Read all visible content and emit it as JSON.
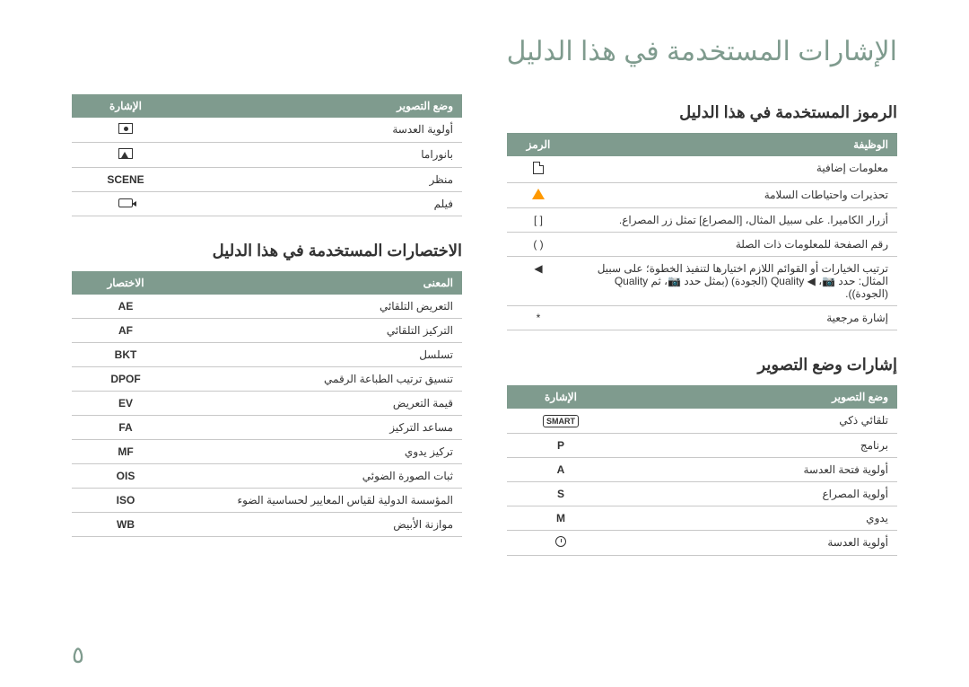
{
  "doc_title": "الإشارات المستخدمة في هذا الدليل",
  "page_number": "٥",
  "right": {
    "symbols_title": "الرموز المستخدمة في هذا الدليل",
    "symbols_headers": {
      "func": "الوظيفة",
      "sym": "الرمز"
    },
    "symbols_rows": [
      {
        "func": "معلومات إضافية",
        "sym": "note"
      },
      {
        "func": "تحذيرات واحتياطات السلامة",
        "sym": "warn"
      },
      {
        "func": "أزرار الكاميرا. على سبيل المثال، [المصراع] تمثل زر المصراع.",
        "sym": "[  ]"
      },
      {
        "func": "رقم الصفحة للمعلومات ذات الصلة",
        "sym": "(  )"
      },
      {
        "func": "ترتيب الخيارات أو القوائم اللازم اختيارها لتنفيذ الخطوة؛ على سبيل المثال: حدد 📷، ◀ Quality (الجودة) (بمثل حدد 📷، ثم Quality (الجودة)).",
        "sym": "◀"
      },
      {
        "func": "إشارة مرجعية",
        "sym": "*"
      }
    ],
    "modes_title": "إشارات وضع التصوير",
    "modes_headers": {
      "mode": "وضع التصوير",
      "sym": "الإشارة"
    },
    "modes_rows": [
      {
        "mode": "تلقائي ذكي",
        "sym": "smart"
      },
      {
        "mode": "برنامج",
        "sym": "P"
      },
      {
        "mode": "أولوية فتحة العدسة",
        "sym": "A"
      },
      {
        "mode": "أولوية المصراع",
        "sym": "S"
      },
      {
        "mode": "يدوي",
        "sym": "M"
      },
      {
        "mode": "أولوية العدسة",
        "sym": "clock"
      }
    ]
  },
  "left": {
    "modes2_headers": {
      "mode": "وضع التصوير",
      "sym": "الإشارة"
    },
    "modes2_rows": [
      {
        "mode": "أولوية العدسة",
        "sym": "portrait"
      },
      {
        "mode": "بانوراما",
        "sym": "landscape"
      },
      {
        "mode": "منظر",
        "sym": "SCENE"
      },
      {
        "mode": "فيلم",
        "sym": "cam"
      }
    ],
    "abbr_title": "الاختصارات المستخدمة في هذا الدليل",
    "abbr_headers": {
      "meaning": "المعنى",
      "abbr": "الاختصار"
    },
    "abbr_rows": [
      {
        "meaning": "التعريض التلقائي",
        "abbr": "AE"
      },
      {
        "meaning": "التركيز التلقائي",
        "abbr": "AF"
      },
      {
        "meaning": "تسلسل",
        "abbr": "BKT"
      },
      {
        "meaning": "تنسيق ترتيب الطباعة الرقمي",
        "abbr": "DPOF"
      },
      {
        "meaning": "قيمة التعريض",
        "abbr": "EV"
      },
      {
        "meaning": "مساعد التركيز",
        "abbr": "FA"
      },
      {
        "meaning": "تركيز يدوي",
        "abbr": "MF"
      },
      {
        "meaning": "ثبات الصورة الضوئي",
        "abbr": "OIS"
      },
      {
        "meaning": "المؤسسة الدولية لقياس المعايير لحساسية الضوء",
        "abbr": "ISO"
      },
      {
        "meaning": "موازنة الأبيض",
        "abbr": "WB"
      }
    ]
  }
}
